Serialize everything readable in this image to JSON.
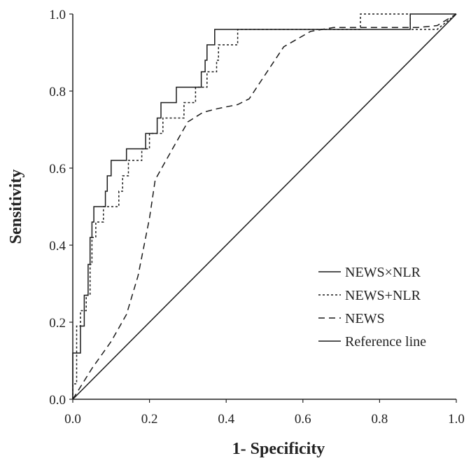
{
  "chart_data": {
    "type": "line",
    "title": "",
    "xlabel": "1- Specificity",
    "ylabel": "Sensitivity",
    "xlim": [
      0,
      1
    ],
    "ylim": [
      0,
      1
    ],
    "x_ticks": [
      "0.0",
      "0.2",
      "0.4",
      "0.6",
      "0.8",
      "1.0"
    ],
    "y_ticks": [
      "0.0",
      "0.2",
      "0.4",
      "0.6",
      "0.8",
      "1.0"
    ],
    "grid": false,
    "legend_position": "bottom-right",
    "series": [
      {
        "name": "NEWS×NLR",
        "style": "solid",
        "color": "#1a1a1a",
        "points": [
          [
            0,
            0
          ],
          [
            0,
            0.12
          ],
          [
            0.02,
            0.12
          ],
          [
            0.02,
            0.19
          ],
          [
            0.03,
            0.19
          ],
          [
            0.03,
            0.27
          ],
          [
            0.04,
            0.27
          ],
          [
            0.04,
            0.35
          ],
          [
            0.045,
            0.35
          ],
          [
            0.045,
            0.42
          ],
          [
            0.05,
            0.42
          ],
          [
            0.05,
            0.46
          ],
          [
            0.055,
            0.46
          ],
          [
            0.055,
            0.5
          ],
          [
            0.085,
            0.5
          ],
          [
            0.085,
            0.54
          ],
          [
            0.09,
            0.54
          ],
          [
            0.09,
            0.58
          ],
          [
            0.1,
            0.58
          ],
          [
            0.1,
            0.62
          ],
          [
            0.14,
            0.62
          ],
          [
            0.14,
            0.65
          ],
          [
            0.19,
            0.65
          ],
          [
            0.19,
            0.69
          ],
          [
            0.22,
            0.69
          ],
          [
            0.22,
            0.73
          ],
          [
            0.23,
            0.73
          ],
          [
            0.23,
            0.77
          ],
          [
            0.27,
            0.77
          ],
          [
            0.27,
            0.81
          ],
          [
            0.335,
            0.81
          ],
          [
            0.335,
            0.85
          ],
          [
            0.345,
            0.85
          ],
          [
            0.345,
            0.88
          ],
          [
            0.35,
            0.88
          ],
          [
            0.35,
            0.92
          ],
          [
            0.37,
            0.92
          ],
          [
            0.37,
            0.96
          ],
          [
            0.88,
            0.96
          ],
          [
            0.88,
            1.0
          ],
          [
            1.0,
            1.0
          ]
        ]
      },
      {
        "name": "NEWS+NLR",
        "style": "dotted",
        "color": "#1a1a1a",
        "points": [
          [
            0,
            0
          ],
          [
            0,
            0.04
          ],
          [
            0.01,
            0.04
          ],
          [
            0.01,
            0.19
          ],
          [
            0.02,
            0.19
          ],
          [
            0.02,
            0.23
          ],
          [
            0.035,
            0.23
          ],
          [
            0.035,
            0.27
          ],
          [
            0.045,
            0.27
          ],
          [
            0.045,
            0.35
          ],
          [
            0.05,
            0.35
          ],
          [
            0.05,
            0.42
          ],
          [
            0.06,
            0.42
          ],
          [
            0.06,
            0.46
          ],
          [
            0.08,
            0.46
          ],
          [
            0.08,
            0.5
          ],
          [
            0.12,
            0.5
          ],
          [
            0.12,
            0.54
          ],
          [
            0.13,
            0.54
          ],
          [
            0.13,
            0.58
          ],
          [
            0.145,
            0.58
          ],
          [
            0.145,
            0.62
          ],
          [
            0.18,
            0.62
          ],
          [
            0.18,
            0.65
          ],
          [
            0.2,
            0.65
          ],
          [
            0.2,
            0.69
          ],
          [
            0.235,
            0.69
          ],
          [
            0.235,
            0.73
          ],
          [
            0.25,
            0.73
          ],
          [
            0.25,
            0.73
          ],
          [
            0.29,
            0.73
          ],
          [
            0.29,
            0.77
          ],
          [
            0.32,
            0.77
          ],
          [
            0.32,
            0.81
          ],
          [
            0.35,
            0.81
          ],
          [
            0.35,
            0.85
          ],
          [
            0.375,
            0.85
          ],
          [
            0.375,
            0.88
          ],
          [
            0.38,
            0.88
          ],
          [
            0.38,
            0.92
          ],
          [
            0.43,
            0.92
          ],
          [
            0.43,
            0.96
          ],
          [
            0.75,
            0.96
          ],
          [
            0.75,
            1.0
          ],
          [
            0.88,
            1.0
          ],
          [
            0.88,
            0.96
          ],
          [
            0.95,
            0.96
          ],
          [
            1.0,
            1.0
          ]
        ]
      },
      {
        "name": "NEWS",
        "style": "dashed",
        "color": "#1a1a1a",
        "points": [
          [
            0,
            0
          ],
          [
            0.05,
            0.08
          ],
          [
            0.1,
            0.15
          ],
          [
            0.14,
            0.22
          ],
          [
            0.17,
            0.32
          ],
          [
            0.2,
            0.47
          ],
          [
            0.215,
            0.57
          ],
          [
            0.26,
            0.65
          ],
          [
            0.3,
            0.72
          ],
          [
            0.34,
            0.745
          ],
          [
            0.38,
            0.755
          ],
          [
            0.43,
            0.765
          ],
          [
            0.46,
            0.78
          ],
          [
            0.5,
            0.84
          ],
          [
            0.55,
            0.915
          ],
          [
            0.62,
            0.955
          ],
          [
            0.68,
            0.965
          ],
          [
            0.9,
            0.965
          ],
          [
            0.95,
            0.97
          ],
          [
            1.0,
            1.0
          ]
        ]
      },
      {
        "name": "Reference line",
        "style": "solid",
        "color": "#1a1a1a",
        "points": [
          [
            0,
            0
          ],
          [
            1,
            1
          ]
        ]
      }
    ]
  }
}
